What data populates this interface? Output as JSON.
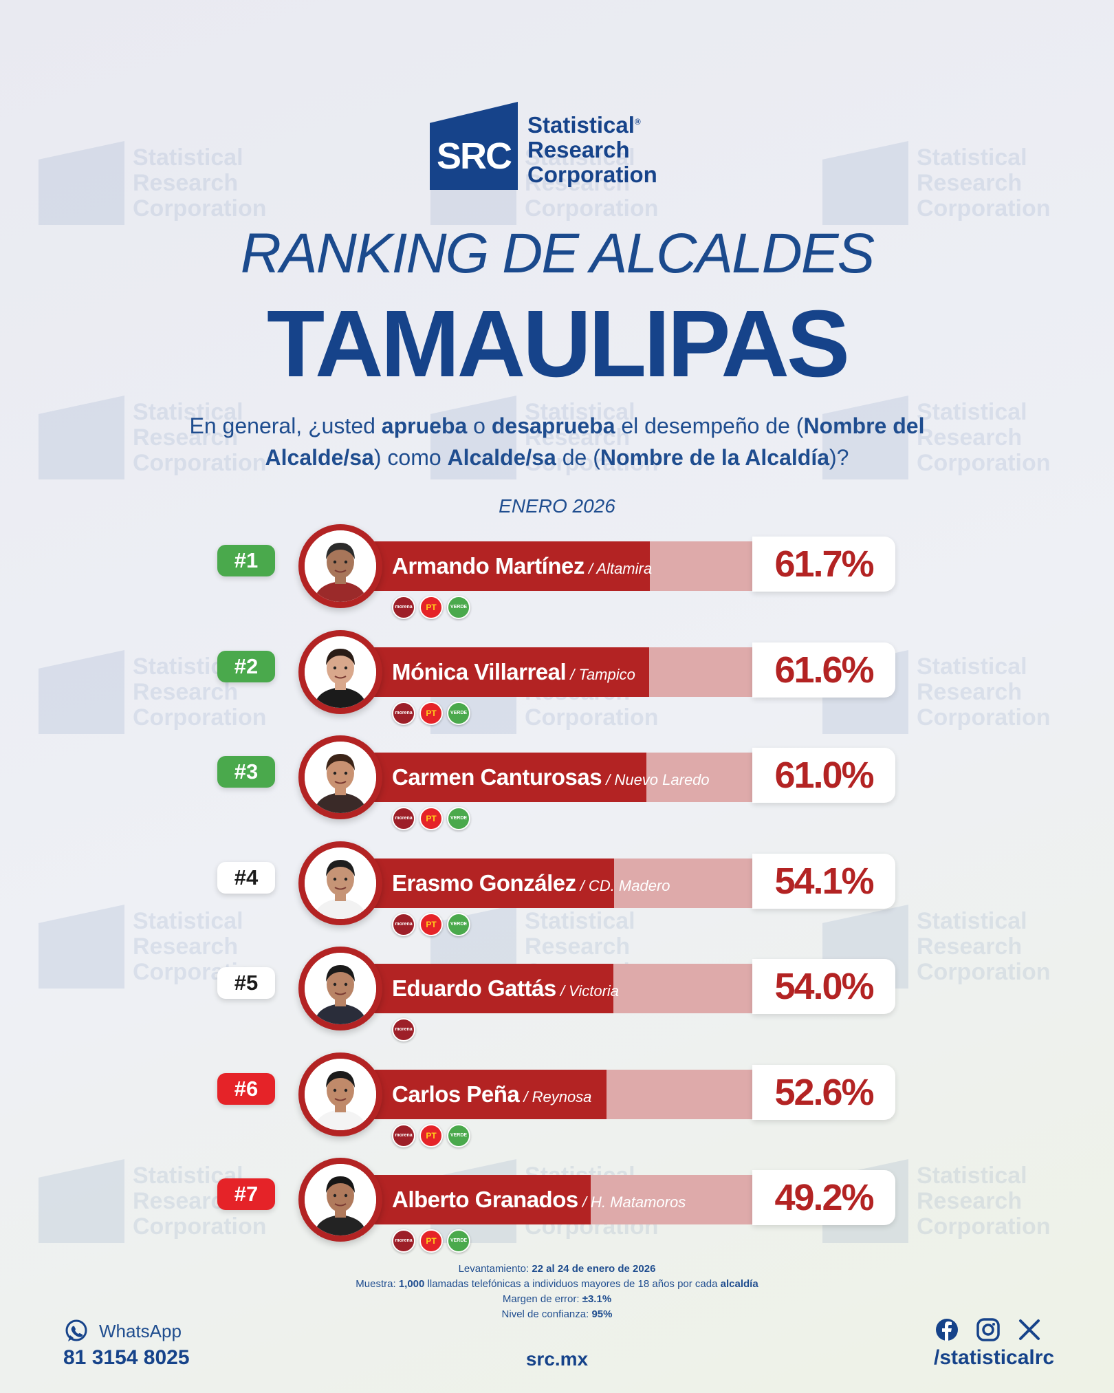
{
  "brand": {
    "mark_text": "SRC",
    "name_lines": [
      "Statistical",
      "Research",
      "Corporation"
    ],
    "registered": "®",
    "primary_color": "#16438a"
  },
  "title": "RANKING DE ALCALDES",
  "state": "TAMAULIPAS",
  "question": {
    "p1": "En general, ¿usted ",
    "b1": "aprueba",
    "p2": " o ",
    "b2": "desaprueba",
    "p3": " el desempeño de (",
    "b3": "Nombre del Alcalde/sa",
    "p4": ") como ",
    "b4": "Alcalde/sa",
    "p5": " de (",
    "b5": "Nombre de la Alcaldía",
    "p6": ")?"
  },
  "period": "ENERO 2026",
  "chart_data": {
    "type": "bar",
    "orientation": "horizontal",
    "value_unit": "%",
    "categories": [
      "Armando Martínez",
      "Mónica Villarreal",
      "Carmen Canturosas",
      "Erasmo González",
      "Eduardo Gattás",
      "Carlos Peña",
      "Alberto Granados"
    ],
    "values": [
      61.7,
      61.6,
      61.0,
      54.1,
      54.0,
      52.6,
      49.2
    ],
    "colors": {
      "bar_fill": "#b32323",
      "bar_track": "#deaaaa",
      "rank_top": "#4aa94c",
      "rank_mid": "#ffffff",
      "rank_low": "#e52328"
    },
    "rows": [
      {
        "rank": "#1",
        "rank_color": "green",
        "name": "Armando Martínez",
        "place": "Altamira",
        "value": 61.7,
        "label": "61.7%",
        "parties": [
          "morena",
          "pt",
          "verde"
        ],
        "avatar": {
          "skin": "#a8765a",
          "hair": "#2b2b2b",
          "shirt": "#9b2a2a"
        }
      },
      {
        "rank": "#2",
        "rank_color": "green",
        "name": "Mónica Villarreal",
        "place": "Tampico",
        "value": 61.6,
        "label": "61.6%",
        "parties": [
          "morena",
          "pt",
          "verde"
        ],
        "avatar": {
          "skin": "#d9a88c",
          "hair": "#2a1c16",
          "shirt": "#1b1b1b"
        }
      },
      {
        "rank": "#3",
        "rank_color": "green",
        "name": "Carmen Canturosas",
        "place": "Nuevo Laredo",
        "value": 61.0,
        "label": "61.0%",
        "parties": [
          "morena",
          "pt",
          "verde"
        ],
        "avatar": {
          "skin": "#c99272",
          "hair": "#3b2418",
          "shirt": "#3a2a28"
        }
      },
      {
        "rank": "#4",
        "rank_color": "white",
        "name": "Erasmo González",
        "place": "CD. Madero",
        "value": 54.1,
        "label": "54.1%",
        "parties": [
          "morena",
          "pt",
          "verde"
        ],
        "avatar": {
          "skin": "#c69476",
          "hair": "#1e1e1e",
          "shirt": "#f2f2f2"
        }
      },
      {
        "rank": "#5",
        "rank_color": "white",
        "name": "Eduardo Gattás",
        "place": "Victoria",
        "value": 54.0,
        "label": "54.0%",
        "parties": [
          "morena"
        ],
        "avatar": {
          "skin": "#b98466",
          "hair": "#1a1a1a",
          "shirt": "#2a2d3a"
        }
      },
      {
        "rank": "#6",
        "rank_color": "red",
        "name": "Carlos Peña",
        "place": "Reynosa",
        "value": 52.6,
        "label": "52.6%",
        "parties": [
          "morena",
          "pt",
          "verde"
        ],
        "avatar": {
          "skin": "#c08a6a",
          "hair": "#1b1b1b",
          "shirt": "#f4f4f4"
        }
      },
      {
        "rank": "#7",
        "rank_color": "red",
        "name": "Alberto Granados",
        "place": "H. Matamoros",
        "value": 49.2,
        "label": "49.2%",
        "parties": [
          "morena",
          "pt",
          "verde"
        ],
        "avatar": {
          "skin": "#b07a5c",
          "hair": "#161616",
          "shirt": "#232323"
        }
      }
    ]
  },
  "party_labels": {
    "morena": "morena",
    "pt": "PT",
    "verde": "VERDE"
  },
  "methodology": {
    "l1_label": "Levantamiento: ",
    "l1_value": "22 al 24 de enero de 2026",
    "l2_label": "Muestra: ",
    "l2_value": "1,000",
    "l2_text": " llamadas telefónicas a individuos mayores de 18 años por cada ",
    "l2_bold": "alcaldía",
    "l3_label": "Margen de error: ",
    "l3_value": "±3.1%",
    "l4_label": "Nivel de confianza: ",
    "l4_value": "95%"
  },
  "footer": {
    "whatsapp_label": "WhatsApp",
    "phone": "81 3154 8025",
    "website": "src.mx",
    "handle": "/statisticalrc",
    "social_icons": [
      "facebook-icon",
      "instagram-icon",
      "x-icon"
    ]
  }
}
